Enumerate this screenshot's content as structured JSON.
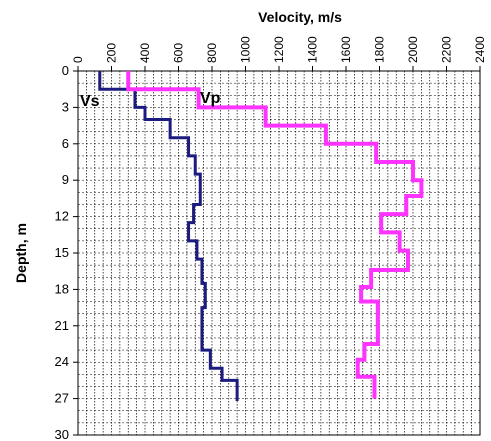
{
  "chart_data": {
    "type": "line",
    "title": "Velocity, m/s",
    "y_label": "Depth, m",
    "xlim": [
      0,
      2400
    ],
    "xticks": [
      0,
      200,
      400,
      600,
      800,
      1000,
      1200,
      1400,
      1600,
      1800,
      2000,
      2200,
      2400
    ],
    "ylim": [
      0,
      30
    ],
    "yticks": [
      0,
      3,
      6,
      9,
      12,
      15,
      18,
      21,
      24,
      27,
      30
    ],
    "y_inverted": true,
    "x_axis_top": true,
    "grid": true,
    "minor_grid": {
      "x": 50,
      "y": 1
    },
    "series": [
      {
        "name": "Vs",
        "color": "#1c1c80",
        "values": [
          130,
          130,
          340,
          340,
          400,
          400,
          550,
          550,
          660,
          660,
          700,
          700,
          730,
          730,
          690,
          690,
          660,
          660,
          710,
          710,
          740,
          740,
          760,
          760,
          740,
          740,
          790,
          790,
          860,
          860,
          950,
          950
        ],
        "depth": [
          0,
          1.5,
          1.5,
          3,
          3,
          4,
          4,
          5.5,
          5.5,
          7,
          7,
          8.5,
          8.5,
          11,
          11,
          12.5,
          12.5,
          14,
          14,
          15.5,
          15.5,
          17.5,
          17.5,
          19.5,
          19.5,
          23,
          23,
          24.5,
          24.5,
          25.5,
          25.5,
          27.2
        ]
      },
      {
        "name": "Vp",
        "color": "#ff33ff",
        "values": [
          300,
          300,
          720,
          720,
          1120,
          1120,
          1480,
          1480,
          1780,
          1780,
          2000,
          2000,
          2050,
          2050,
          1960,
          1960,
          1810,
          1810,
          1920,
          1920,
          1970,
          1970,
          1750,
          1750,
          1690,
          1690,
          1790,
          1790,
          1710,
          1710,
          1670,
          1670,
          1770,
          1770
        ],
        "depth": [
          0,
          1.5,
          1.5,
          3,
          3,
          4.5,
          4.5,
          6,
          6,
          7.5,
          7.5,
          9,
          9,
          10.3,
          10.3,
          11.8,
          11.8,
          13.3,
          13.3,
          14.8,
          14.8,
          16.4,
          16.4,
          17.8,
          17.8,
          19,
          19,
          22.5,
          22.5,
          23.8,
          23.8,
          25.2,
          25.2,
          27
        ]
      }
    ]
  }
}
